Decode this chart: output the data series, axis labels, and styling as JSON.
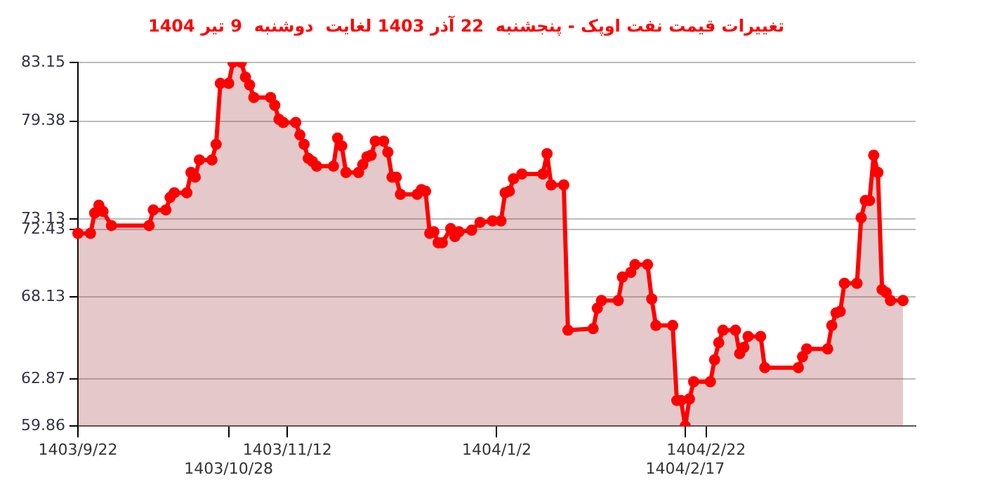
{
  "chart_data": {
    "type": "area",
    "title": "تغییرات قیمت نفت اوپک - پنجشنبه  22 آذر 1403 لغایت  دوشنبه  9 تیر 1404",
    "categories": [
      "1403/9/22",
      null,
      null,
      null,
      null,
      null,
      null,
      null,
      null,
      null,
      null,
      null,
      null,
      null,
      null,
      null,
      null,
      null,
      null,
      null,
      null,
      null,
      null,
      null,
      null,
      null,
      null,
      null,
      null,
      null,
      null,
      null,
      null,
      null,
      null,
      null,
      "1403/10/28",
      null,
      null,
      null,
      null,
      null,
      null,
      null,
      null,
      null,
      null,
      null,
      null,
      null,
      "1403/11/12",
      null,
      null,
      null,
      null,
      null,
      null,
      null,
      null,
      null,
      null,
      null,
      null,
      null,
      null,
      null,
      null,
      null,
      null,
      null,
      null,
      null,
      null,
      null,
      null,
      null,
      null,
      null,
      null,
      null,
      null,
      null,
      null,
      null,
      null,
      null,
      null,
      null,
      null,
      null,
      null,
      null,
      null,
      null,
      null,
      null,
      null,
      null,
      null,
      null,
      "1404/1/2",
      null,
      null,
      null,
      null,
      null,
      null,
      null,
      null,
      null,
      null,
      null,
      null,
      null,
      null,
      null,
      null,
      null,
      null,
      null,
      null,
      null,
      null,
      null,
      null,
      null,
      null,
      null,
      null,
      null,
      null,
      null,
      null,
      null,
      null,
      null,
      null,
      null,
      null,
      null,
      null,
      null,
      null,
      null,
      null,
      "1404/2/17",
      null,
      null,
      null,
      null,
      "1404/2/22",
      null,
      null,
      null,
      null,
      null,
      null,
      null,
      null,
      null,
      null,
      null,
      null,
      null,
      null,
      null,
      null,
      null,
      null,
      null,
      null,
      null,
      null,
      null,
      null,
      null,
      null,
      null,
      null,
      null,
      null,
      null,
      null,
      null,
      null,
      null,
      null,
      null,
      null,
      null,
      null,
      null,
      null,
      null,
      null,
      null,
      null,
      null,
      null,
      null,
      null
    ],
    "series": [
      {
        "color": "#ff0000",
        "values": [
          72.2,
          null,
          null,
          72.2,
          73.5,
          74.0,
          73.6,
          null,
          72.7,
          null,
          null,
          null,
          null,
          null,
          null,
          null,
          null,
          72.7,
          73.7,
          null,
          null,
          73.7,
          74.5,
          74.8,
          null,
          null,
          74.8,
          76.1,
          75.8,
          76.9,
          null,
          null,
          76.9,
          77.9,
          81.8,
          null,
          81.8,
          83.15,
          null,
          83.15,
          82.2,
          81.7,
          80.9,
          null,
          null,
          null,
          80.9,
          80.4,
          79.5,
          79.3,
          null,
          null,
          79.3,
          78.5,
          77.9,
          77.0,
          76.8,
          76.5,
          null,
          null,
          null,
          76.5,
          78.3,
          77.8,
          76.1,
          null,
          null,
          76.1,
          76.6,
          77.1,
          77.2,
          78.1,
          null,
          78.1,
          77.4,
          75.8,
          75.8,
          74.7,
          null,
          null,
          null,
          74.7,
          75.0,
          74.9,
          72.2,
          72.3,
          71.6,
          71.6,
          null,
          72.5,
          72.0,
          72.3,
          null,
          null,
          72.4,
          null,
          72.9,
          null,
          null,
          73.0,
          null,
          73.0,
          74.8,
          74.9,
          75.7,
          null,
          76.0,
          null,
          null,
          null,
          null,
          76.0,
          77.3,
          75.3,
          null,
          null,
          75.3,
          66.0,
          null,
          null,
          null,
          null,
          null,
          66.1,
          67.4,
          67.9,
          null,
          null,
          null,
          67.9,
          69.4,
          null,
          69.7,
          70.2,
          null,
          null,
          70.2,
          68.0,
          66.3,
          null,
          null,
          null,
          66.3,
          61.5,
          61.5,
          59.86,
          61.6,
          62.7,
          null,
          null,
          null,
          62.7,
          64.1,
          65.2,
          66.0,
          null,
          null,
          66.0,
          64.5,
          64.9,
          65.6,
          null,
          null,
          65.6,
          63.6,
          null,
          null,
          null,
          null,
          null,
          null,
          null,
          63.6,
          64.3,
          64.8,
          null,
          null,
          null,
          null,
          64.8,
          66.3,
          67.1,
          67.2,
          69.0,
          null,
          null,
          69.0,
          73.2,
          74.3,
          74.3,
          77.2,
          76.1,
          68.6,
          68.4,
          67.9,
          null,
          null,
          67.9,
          null,
          null,
          null
        ]
      }
    ],
    "ylim": [
      59.86,
      83.15
    ],
    "yticks": [
      59.86,
      62.87,
      68.13,
      72.43,
      73.13,
      79.38,
      83.15
    ],
    "grid": "y",
    "marker": "circle",
    "line_style": "solid",
    "legend": false
  }
}
